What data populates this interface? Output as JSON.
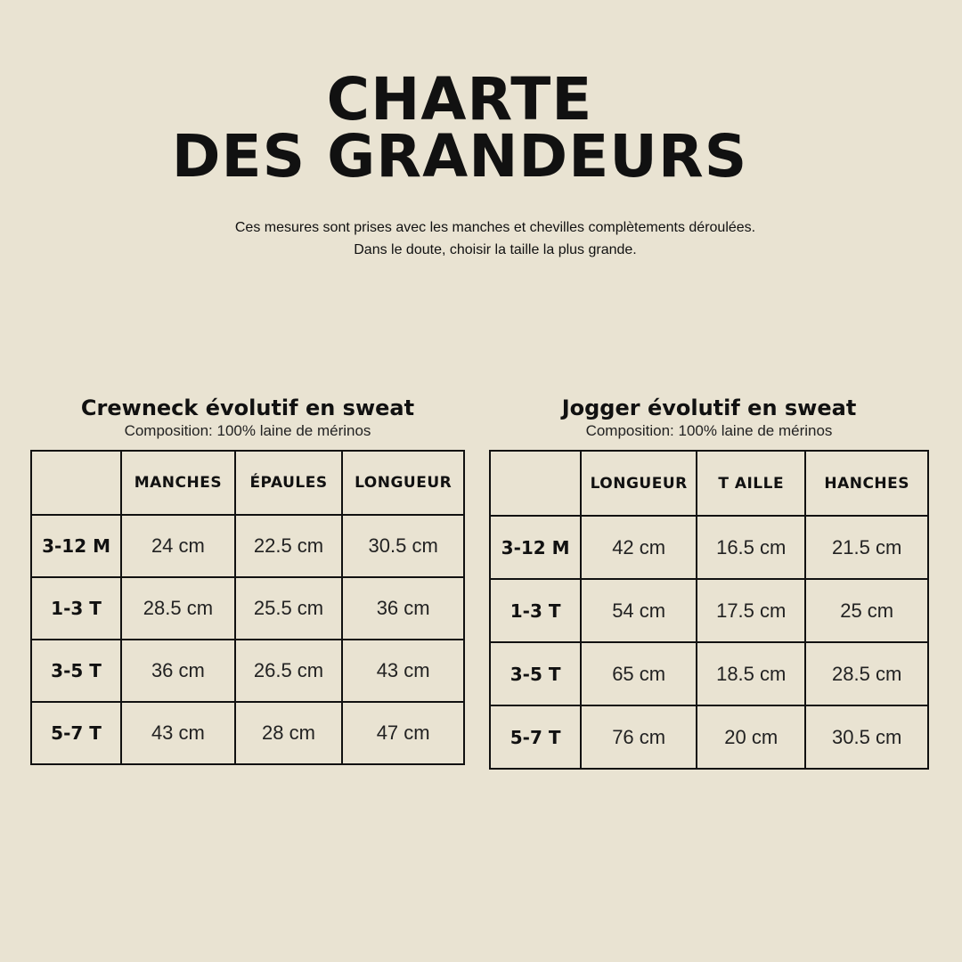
{
  "header": {
    "title_line1": "CHARTE",
    "title_line2": "DES GRANDEURS",
    "note_line1": "Ces mesures sont prises avec les manches et chevilles complètements déroulées.",
    "note_line2": "Dans le doute, choisir la taille la plus grande."
  },
  "tables": [
    {
      "name": "Crewneck évolutif en sweat",
      "composition": "Composition: 100% laine de mérinos",
      "columns": [
        "",
        "MANCHES",
        "ÉPAULES",
        "LONGUEUR"
      ],
      "rows": [
        [
          "3-12 M",
          "24 cm",
          "22.5 cm",
          "30.5 cm"
        ],
        [
          "1-3  T",
          "28.5 cm",
          "25.5 cm",
          "36 cm"
        ],
        [
          "3-5 T",
          "36 cm",
          "26.5 cm",
          "43 cm"
        ],
        [
          "5-7 T",
          "43 cm",
          "28 cm",
          "47 cm"
        ]
      ]
    },
    {
      "name": "Jogger  évolutif en sweat",
      "composition": "Composition: 100% laine de mérinos",
      "columns": [
        "",
        "LONGUEUR",
        "T AILLE",
        "HANCHES"
      ],
      "rows": [
        [
          "3-12 M",
          "42 cm",
          "16.5 cm",
          "21.5 cm"
        ],
        [
          "1-3  T",
          "54 cm",
          "17.5 cm",
          "25 cm"
        ],
        [
          "3-5 T",
          "65 cm",
          "18.5 cm",
          "28.5 cm"
        ],
        [
          "5-7 T",
          "76 cm",
          "20 cm",
          "30.5 cm"
        ]
      ]
    }
  ]
}
